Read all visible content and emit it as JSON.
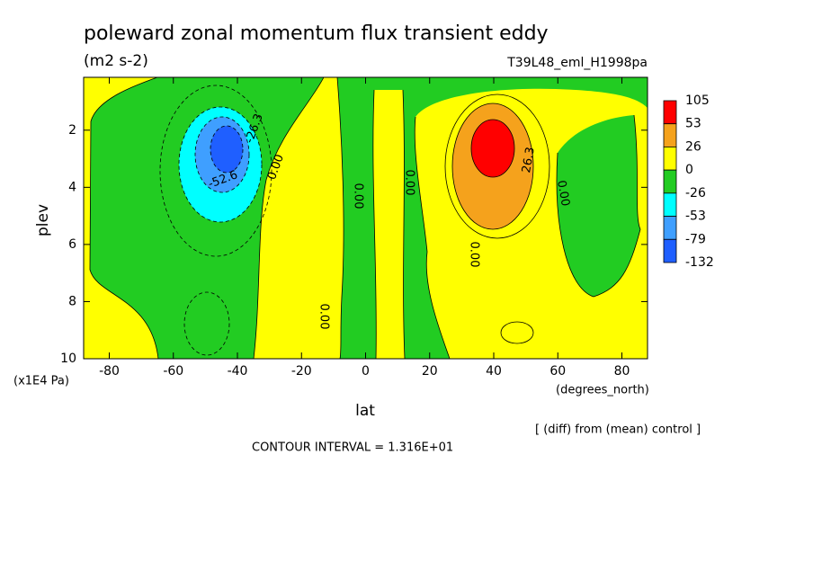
{
  "chart_data": {
    "type": "contour",
    "title": "poleward zonal momentum flux transient eddy",
    "subtitle": "(m2 s-2)",
    "dataset": "T39L48_eml_H1998pa",
    "x_label": "lat",
    "x_units": "(degrees_north)",
    "y_label": "plev",
    "y_units": "(x1E4 Pa)",
    "note": "[ (diff) from (mean) control ]",
    "contour_interval": "CONTOUR INTERVAL = 1.316E+01",
    "xlim": [
      -88,
      88
    ],
    "xticks": [
      -80,
      -60,
      -40,
      -20,
      0,
      20,
      40,
      60,
      80
    ],
    "ylim": [
      10,
      0.15
    ],
    "yticks": [
      2,
      4,
      6,
      8,
      10
    ],
    "levels": [
      105,
      53,
      26,
      0,
      -26,
      -53,
      -79,
      -132
    ],
    "colors": [
      "#ff0000",
      "#f5a21c",
      "#ffff00",
      "#22cc22",
      "#00ffff",
      "#3f9fff",
      "#1f5fff"
    ],
    "contour_labels": [
      "-26.3",
      "-52.6",
      "0.00",
      "0.00",
      "0.00",
      "0.00",
      "0.00",
      "0.00",
      "26.3"
    ]
  }
}
